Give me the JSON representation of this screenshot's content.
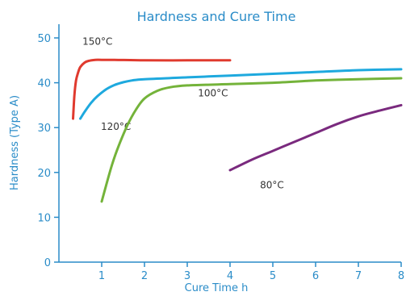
{
  "chart_data": {
    "type": "line",
    "title": "Hardness and Cure Time",
    "xlabel": "Cure Time  h",
    "ylabel": "Hardness (Type A)",
    "xlim": [
      0,
      8
    ],
    "ylim": [
      0,
      50
    ],
    "xticks": [
      1,
      2,
      3,
      4,
      5,
      6,
      7,
      8
    ],
    "yticks": [
      0,
      10,
      20,
      30,
      40,
      50
    ],
    "grid": false,
    "axis_color": "#2a8cc8",
    "series": [
      {
        "name": "150°C",
        "color": "#e03a2e",
        "x": [
          0.33,
          0.36,
          0.4,
          0.45,
          0.5,
          0.6,
          0.7,
          0.85,
          1.0,
          1.3,
          2.0,
          3.0,
          4.0
        ],
        "y": [
          32,
          37,
          40.5,
          42.3,
          43.5,
          44.5,
          44.9,
          45.1,
          45.1,
          45.1,
          45.0,
          45.0,
          45.0
        ],
        "label_x": 0.55,
        "label_y": 48.5
      },
      {
        "name": "120°C",
        "color": "#1ea9de",
        "x": [
          0.5,
          0.6,
          0.75,
          0.9,
          1.1,
          1.3,
          1.5,
          1.7,
          2.0,
          3.0,
          4.0,
          5.0,
          6.0,
          7.0,
          8.0
        ],
        "y": [
          32,
          33.5,
          35.5,
          37,
          38.5,
          39.5,
          40.1,
          40.5,
          40.8,
          41.2,
          41.6,
          42,
          42.4,
          42.8,
          43
        ],
        "label_x": 0.98,
        "label_y": 29.5
      },
      {
        "name": "100°C",
        "color": "#74b33a",
        "x": [
          1.0,
          1.1,
          1.25,
          1.4,
          1.6,
          1.8,
          2.0,
          2.3,
          2.6,
          3.0,
          4.0,
          5.0,
          6.0,
          7.0,
          8.0
        ],
        "y": [
          13.5,
          17,
          22,
          26,
          30.5,
          34,
          36.5,
          38.2,
          39,
          39.4,
          39.7,
          40,
          40.5,
          40.8,
          41
        ],
        "label_x": 3.25,
        "label_y": 37
      },
      {
        "name": "80°C",
        "color": "#7a2a7e",
        "x": [
          4.0,
          4.5,
          5.0,
          5.5,
          6.0,
          6.5,
          7.0,
          7.5,
          8.0
        ],
        "y": [
          20.5,
          22.8,
          24.8,
          26.8,
          28.8,
          30.8,
          32.5,
          33.8,
          35
        ],
        "label_x": 4.7,
        "label_y": 16.5
      }
    ]
  }
}
